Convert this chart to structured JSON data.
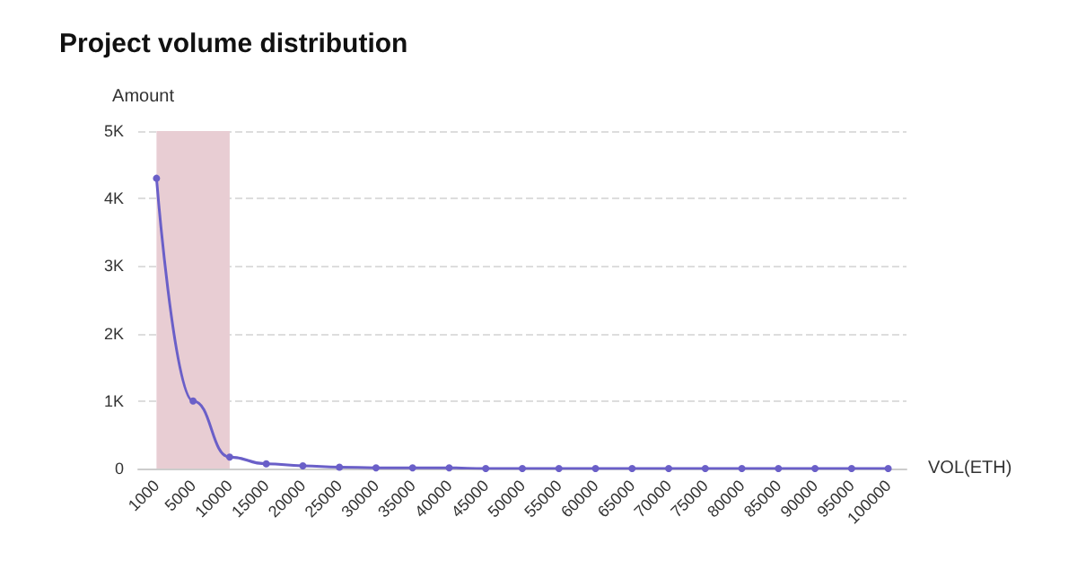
{
  "chart_data": {
    "type": "line",
    "title": "Project volume distribution",
    "xlabel": "VOL(ETH)",
    "ylabel": "Amount",
    "categories": [
      "1000",
      "5000",
      "10000",
      "15000",
      "20000",
      "25000",
      "30000",
      "35000",
      "40000",
      "45000",
      "50000",
      "55000",
      "60000",
      "65000",
      "70000",
      "75000",
      "80000",
      "85000",
      "90000",
      "95000",
      "100000"
    ],
    "series": [
      {
        "color": "#6a5fc8",
        "values": [
          4300,
          1000,
          170,
          70,
          40,
          20,
          10,
          10,
          10,
          0,
          0,
          0,
          0,
          0,
          0,
          0,
          0,
          0,
          0,
          0,
          0
        ]
      }
    ],
    "ylim": [
      0,
      5000
    ],
    "yticks": [
      {
        "value": 0,
        "label": "0"
      },
      {
        "value": 1000,
        "label": "1K"
      },
      {
        "value": 2000,
        "label": "2K"
      },
      {
        "value": 3000,
        "label": "3K"
      },
      {
        "value": 4000,
        "label": "4K"
      },
      {
        "value": 5000,
        "label": "5K"
      }
    ],
    "bands": [
      {
        "axis": "x",
        "from": "1000",
        "to": "10000",
        "color": "#e8cdd3"
      }
    ],
    "grid": "y",
    "marker": "circle",
    "line_style": "solid"
  }
}
